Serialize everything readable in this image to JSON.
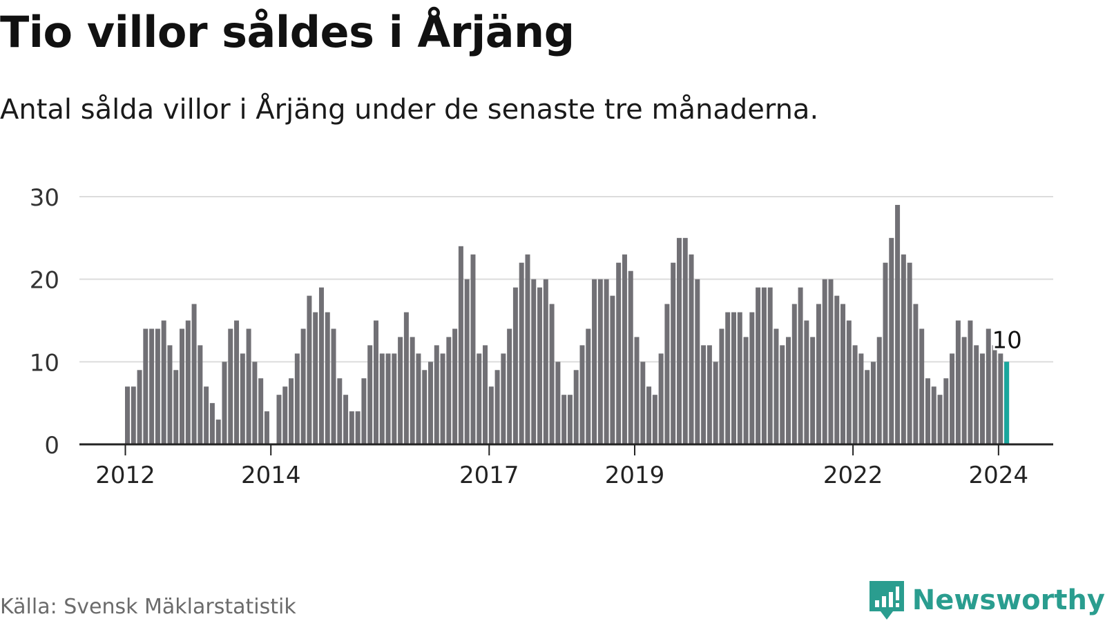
{
  "title": "Tio villor såldes i Årjäng",
  "subtitle": "Antal sålda villor i Årjäng under de senaste tre månaderna.",
  "source": "Källa: Svensk Mäklarstatistik",
  "brand": {
    "name": "Newsworthy",
    "icon": "newsworthy-logo-icon"
  },
  "colors": {
    "bar": "#717075",
    "highlight": "#1aa69d",
    "grid": "#dcdcdc",
    "axis": "#222222",
    "brand": "#2a9d8f"
  },
  "chart_data": {
    "type": "bar",
    "title": "Tio villor såldes i Årjäng",
    "xlabel": "",
    "ylabel": "",
    "ylim": [
      0,
      30
    ],
    "yticks": [
      0,
      10,
      20,
      30
    ],
    "grid": true,
    "x_tick_labels": [
      {
        "label": "2012",
        "index": 0
      },
      {
        "label": "2014",
        "index": 24
      },
      {
        "label": "2017",
        "index": 60
      },
      {
        "label": "2019",
        "index": 84
      },
      {
        "label": "2022",
        "index": 120
      },
      {
        "label": "2024",
        "index": 144
      }
    ],
    "start": "2012-01",
    "values": [
      7,
      7,
      9,
      14,
      14,
      14,
      15,
      12,
      9,
      14,
      15,
      17,
      12,
      7,
      5,
      3,
      10,
      14,
      15,
      11,
      14,
      10,
      8,
      4,
      0,
      6,
      7,
      8,
      11,
      14,
      18,
      16,
      19,
      16,
      14,
      8,
      6,
      4,
      4,
      8,
      12,
      15,
      11,
      11,
      11,
      13,
      16,
      13,
      11,
      9,
      10,
      12,
      11,
      13,
      14,
      24,
      20,
      23,
      11,
      12,
      7,
      9,
      11,
      14,
      19,
      22,
      23,
      20,
      19,
      20,
      17,
      10,
      6,
      6,
      9,
      12,
      14,
      20,
      20,
      20,
      18,
      22,
      23,
      21,
      13,
      10,
      7,
      6,
      11,
      17,
      22,
      25,
      25,
      23,
      20,
      12,
      12,
      10,
      14,
      16,
      16,
      16,
      13,
      16,
      19,
      19,
      19,
      14,
      12,
      13,
      17,
      19,
      15,
      13,
      17,
      20,
      20,
      18,
      17,
      15,
      12,
      11,
      9,
      10,
      13,
      22,
      25,
      29,
      23,
      22,
      17,
      14,
      8,
      7,
      6,
      8,
      11,
      15,
      13,
      15,
      12,
      11,
      14,
      12,
      11,
      10
    ],
    "highlight": {
      "index": 145,
      "label": "10"
    }
  }
}
